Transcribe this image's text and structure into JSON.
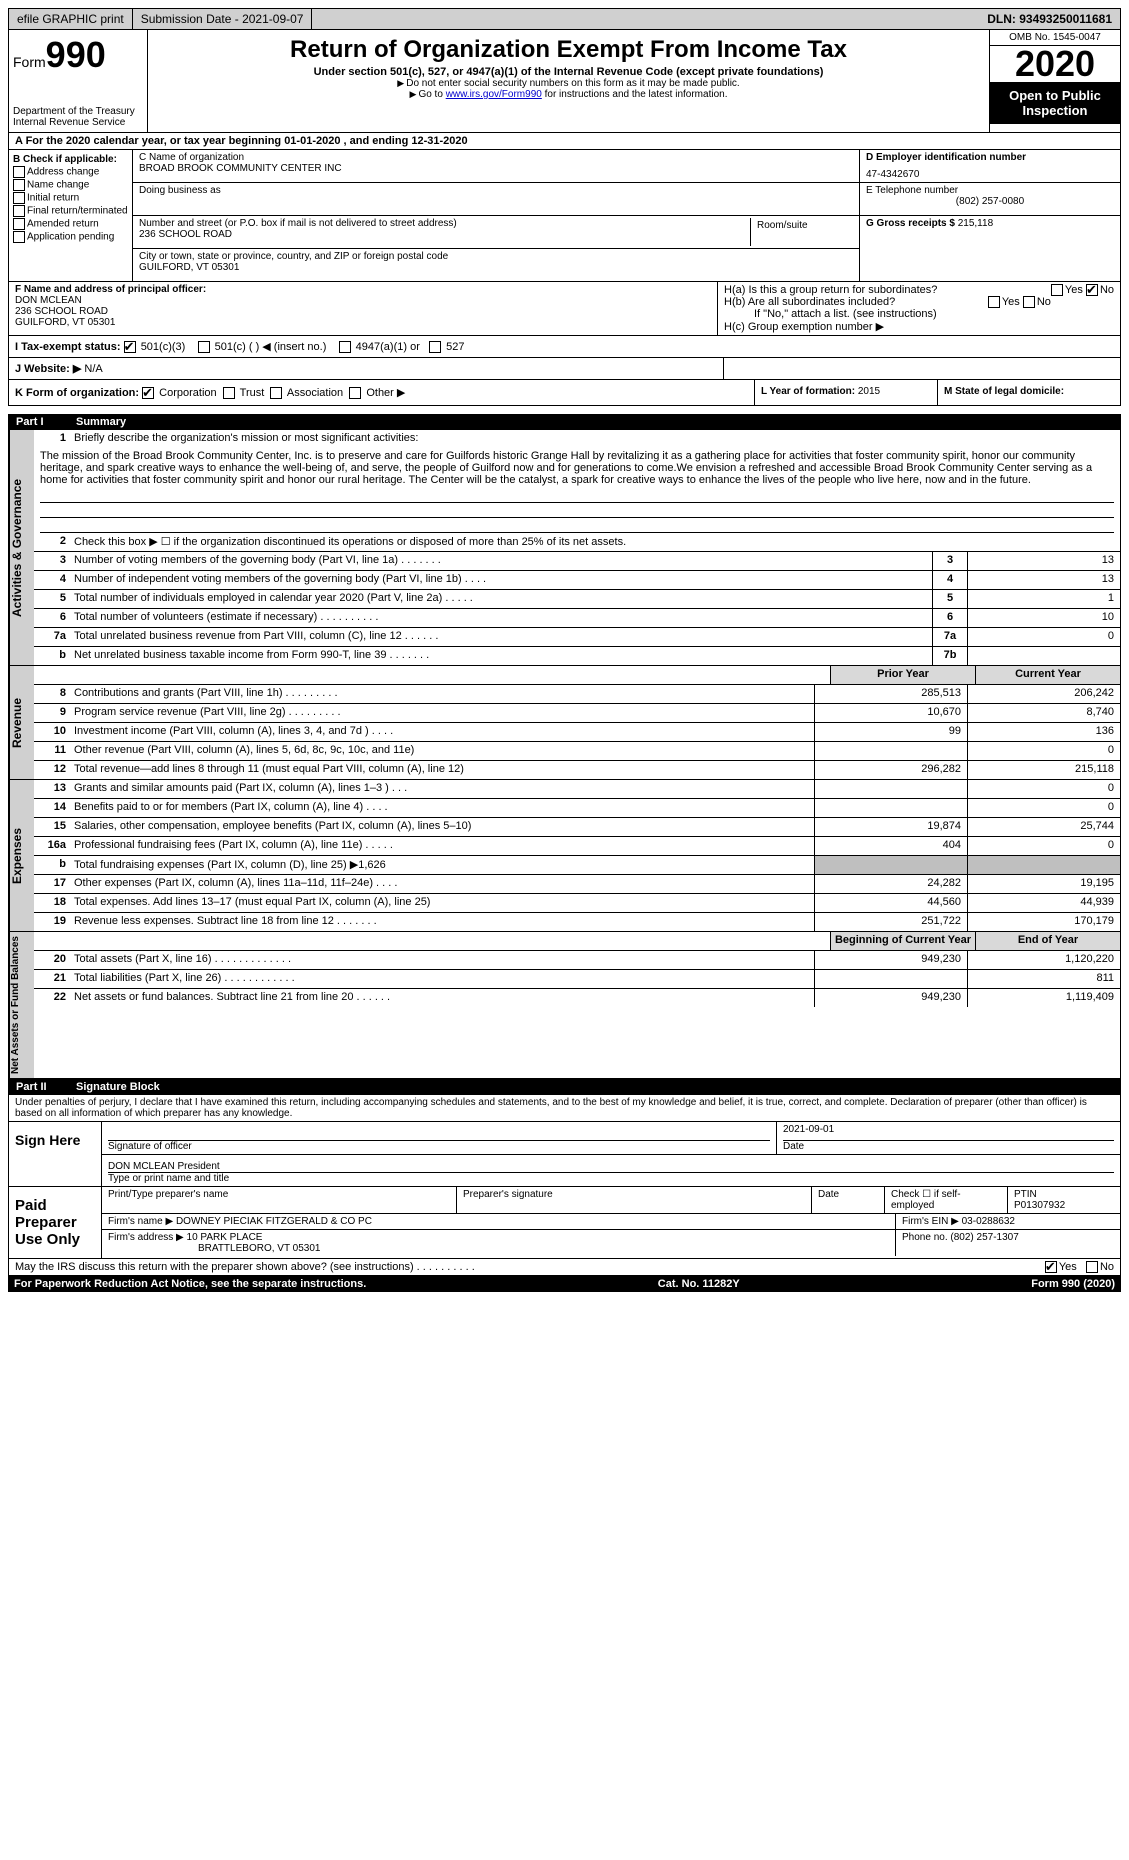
{
  "topbar": {
    "efile": "efile GRAPHIC print",
    "submission": "Submission Date - 2021-09-07",
    "dln": "DLN: 93493250011681"
  },
  "header": {
    "form_label": "Form",
    "form_num": "990",
    "dept": "Department of the Treasury\nInternal Revenue Service",
    "title": "Return of Organization Exempt From Income Tax",
    "subtitle": "Under section 501(c), 527, or 4947(a)(1) of the Internal Revenue Code (except private foundations)",
    "note1": "Do not enter social security numbers on this form as it may be made public.",
    "note2_pre": "Go to ",
    "note2_link": "www.irs.gov/Form990",
    "note2_post": " for instructions and the latest information.",
    "omb": "OMB No. 1545-0047",
    "year": "2020",
    "open": "Open to Public Inspection"
  },
  "rowA": "A For the 2020 calendar year, or tax year beginning 01-01-2020  , and ending 12-31-2020",
  "B": {
    "label": "B Check if applicable:",
    "items": [
      "Address change",
      "Name change",
      "Initial return",
      "Final return/terminated",
      "Amended return",
      "Application pending"
    ]
  },
  "C": {
    "name_label": "C Name of organization",
    "name": "BROAD BROOK COMMUNITY CENTER INC",
    "dba_label": "Doing business as",
    "dba": "",
    "street_label": "Number and street (or P.O. box if mail is not delivered to street address)",
    "street": "236 SCHOOL ROAD",
    "room_label": "Room/suite",
    "city_label": "City or town, state or province, country, and ZIP or foreign postal code",
    "city": "GUILFORD, VT  05301"
  },
  "D": {
    "label": "D Employer identification number",
    "value": "47-4342670"
  },
  "E": {
    "label": "E Telephone number",
    "value": "(802) 257-0080"
  },
  "G": {
    "label": "G Gross receipts $",
    "value": "215,118"
  },
  "F": {
    "label": "F  Name and address of principal officer:",
    "name": "DON MCLEAN",
    "street": "236 SCHOOL ROAD",
    "city": "GUILFORD, VT  05301"
  },
  "H": {
    "a": "H(a)  Is this a group return for subordinates?",
    "b": "H(b)  Are all subordinates included?",
    "b_note": "If \"No,\" attach a list. (see instructions)",
    "c": "H(c)  Group exemption number ▶",
    "yes": "Yes",
    "no": "No"
  },
  "I": {
    "label": "I  Tax-exempt status:",
    "opts": [
      "501(c)(3)",
      "501(c) (  ) ◀ (insert no.)",
      "4947(a)(1) or",
      "527"
    ]
  },
  "J": {
    "label": "J  Website: ▶",
    "value": "N/A"
  },
  "K": {
    "label": "K Form of organization:",
    "opts": [
      "Corporation",
      "Trust",
      "Association",
      "Other ▶"
    ]
  },
  "L": {
    "label": "L Year of formation:",
    "value": "2015"
  },
  "M": {
    "label": "M State of legal domicile:",
    "value": ""
  },
  "part1": {
    "label": "Part I",
    "title": "Summary"
  },
  "gov": {
    "vtab": "Activities & Governance",
    "q1_label": "Briefly describe the organization's mission or most significant activities:",
    "mission": "The mission of the Broad Brook Community Center, Inc. is to preserve and care for Guilfords historic Grange Hall by revitalizing it as a gathering place for activities that foster community spirit, honor our community heritage, and spark creative ways to enhance the well-being of, and serve, the people of Guilford now and for generations to come.We envision a refreshed and accessible Broad Brook Community Center serving as a home for activities that foster community spirit and honor our rural heritage. The Center will be the catalyst, a spark for creative ways to enhance the lives of the people who live here, now and in the future.",
    "q2": "Check this box ▶ ☐ if the organization discontinued its operations or disposed of more than 25% of its net assets.",
    "rows": [
      {
        "n": "3",
        "d": "Number of voting members of the governing body (Part VI, line 1a)  .    .    .    .    .    .    .",
        "b": "3",
        "v": "13"
      },
      {
        "n": "4",
        "d": "Number of independent voting members of the governing body (Part VI, line 1b)   .    .    .    .",
        "b": "4",
        "v": "13"
      },
      {
        "n": "5",
        "d": "Total number of individuals employed in calendar year 2020 (Part V, line 2a)   .    .    .    .    .",
        "b": "5",
        "v": "1"
      },
      {
        "n": "6",
        "d": "Total number of volunteers (estimate if necessary)   .    .    .    .    .    .    .    .    .    .",
        "b": "6",
        "v": "10"
      },
      {
        "n": "7a",
        "d": "Total unrelated business revenue from Part VIII, column (C), line 12   .    .    .    .    .    .",
        "b": "7a",
        "v": "0"
      },
      {
        "n": "b",
        "d": "Net unrelated business taxable income from Form 990-T, line 39   .    .    .    .    .    .    .",
        "b": "7b",
        "v": ""
      }
    ]
  },
  "rev": {
    "vtab": "Revenue",
    "head_prior": "Prior Year",
    "head_curr": "Current Year",
    "rows": [
      {
        "n": "8",
        "d": "Contributions and grants (Part VIII, line 1h)   .    .    .    .    .    .    .    .    .",
        "p": "285,513",
        "c": "206,242"
      },
      {
        "n": "9",
        "d": "Program service revenue (Part VIII, line 2g)   .    .    .    .    .    .    .    .    .",
        "p": "10,670",
        "c": "8,740"
      },
      {
        "n": "10",
        "d": "Investment income (Part VIII, column (A), lines 3, 4, and 7d )   .    .    .    .",
        "p": "99",
        "c": "136"
      },
      {
        "n": "11",
        "d": "Other revenue (Part VIII, column (A), lines 5, 6d, 8c, 9c, 10c, and 11e)",
        "p": "",
        "c": "0"
      },
      {
        "n": "12",
        "d": "Total revenue—add lines 8 through 11 (must equal Part VIII, column (A), line 12)",
        "p": "296,282",
        "c": "215,118"
      }
    ]
  },
  "exp": {
    "vtab": "Expenses",
    "rows": [
      {
        "n": "13",
        "d": "Grants and similar amounts paid (Part IX, column (A), lines 1–3 )   .    .    .",
        "p": "",
        "c": "0"
      },
      {
        "n": "14",
        "d": "Benefits paid to or for members (Part IX, column (A), line 4)   .    .    .    .",
        "p": "",
        "c": "0"
      },
      {
        "n": "15",
        "d": "Salaries, other compensation, employee benefits (Part IX, column (A), lines 5–10)",
        "p": "19,874",
        "c": "25,744"
      },
      {
        "n": "16a",
        "d": "Professional fundraising fees (Part IX, column (A), line 11e)   .    .    .    .    .",
        "p": "404",
        "c": "0"
      },
      {
        "n": "b",
        "d": "Total fundraising expenses (Part IX, column (D), line 25) ▶1,626",
        "p": "grey",
        "c": "grey"
      },
      {
        "n": "17",
        "d": "Other expenses (Part IX, column (A), lines 11a–11d, 11f–24e)   .    .    .    .",
        "p": "24,282",
        "c": "19,195"
      },
      {
        "n": "18",
        "d": "Total expenses. Add lines 13–17 (must equal Part IX, column (A), line 25)",
        "p": "44,560",
        "c": "44,939"
      },
      {
        "n": "19",
        "d": "Revenue less expenses. Subtract line 18 from line 12   .    .    .    .    .    .    .",
        "p": "251,722",
        "c": "170,179"
      }
    ]
  },
  "net": {
    "vtab": "Net Assets or Fund Balances",
    "head_beg": "Beginning of Current Year",
    "head_end": "End of Year",
    "rows": [
      {
        "n": "20",
        "d": "Total assets (Part X, line 16)   .    .    .    .    .    .    .    .    .    .    .    .    .",
        "p": "949,230",
        "c": "1,120,220"
      },
      {
        "n": "21",
        "d": "Total liabilities (Part X, line 26)   .    .    .    .    .    .    .    .    .    .    .    .",
        "p": "",
        "c": "811"
      },
      {
        "n": "22",
        "d": "Net assets or fund balances. Subtract line 21 from line 20   .    .    .    .    .    .",
        "p": "949,230",
        "c": "1,119,409"
      }
    ]
  },
  "part2": {
    "label": "Part II",
    "title": "Signature Block"
  },
  "sig": {
    "perjury": "Under penalties of perjury, I declare that I have examined this return, including accompanying schedules and statements, and to the best of my knowledge and belief, it is true, correct, and complete. Declaration of preparer (other than officer) is based on all information of which preparer has any knowledge.",
    "sign_here": "Sign Here",
    "sig_officer": "Signature of officer",
    "date": "Date",
    "date_val": "2021-09-01",
    "name_title": "DON MCLEAN  President",
    "name_title_label": "Type or print name and title"
  },
  "paid": {
    "label": "Paid Preparer Use Only",
    "h_name": "Print/Type preparer's name",
    "h_sig": "Preparer's signature",
    "h_date": "Date",
    "h_check": "Check ☐ if self-employed",
    "h_ptin": "PTIN",
    "ptin": "P01307932",
    "firm_name_label": "Firm's name    ▶",
    "firm_name": "DOWNEY PIECIAK FITZGERALD & CO PC",
    "firm_ein_label": "Firm's EIN ▶",
    "firm_ein": "03-0288632",
    "firm_addr_label": "Firm's address ▶",
    "firm_addr1": "10 PARK PLACE",
    "firm_addr2": "BRATTLEBORO, VT  05301",
    "phone_label": "Phone no.",
    "phone": "(802) 257-1307"
  },
  "discuss": {
    "text": "May the IRS discuss this return with the preparer shown above? (see instructions)   .    .    .    .    .    .    .    .    .    .",
    "yes": "Yes",
    "no": "No"
  },
  "footer": {
    "left": "For Paperwork Reduction Act Notice, see the separate instructions.",
    "mid": "Cat. No. 11282Y",
    "right": "Form 990 (2020)"
  }
}
